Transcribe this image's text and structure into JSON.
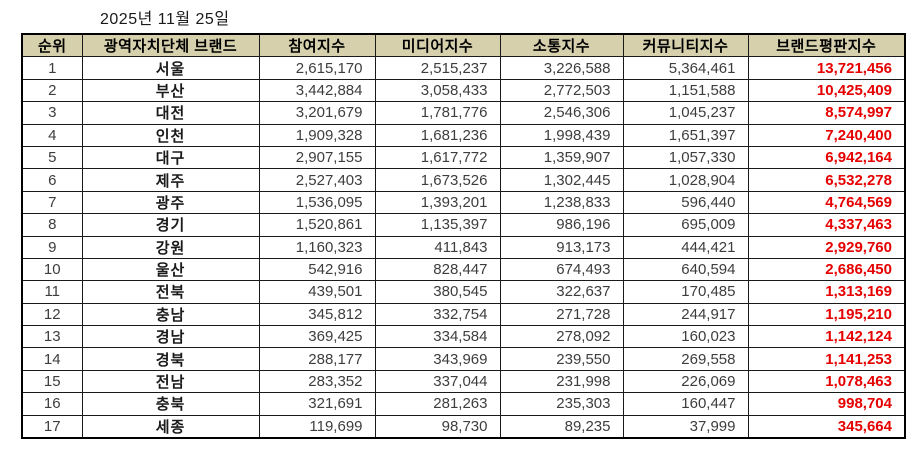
{
  "date_label": "2025년 11월 25일",
  "table": {
    "headers": [
      "순위",
      "광역자치단체 브랜드",
      "참여지수",
      "미디어지수",
      "소통지수",
      "커뮤니티지수",
      "브랜드평판지수"
    ],
    "rows": [
      {
        "rank": "1",
        "brand": "서울",
        "participation": "2,615,170",
        "media": "2,515,237",
        "communication": "3,226,588",
        "community": "5,364,461",
        "reputation": "13,721,456"
      },
      {
        "rank": "2",
        "brand": "부산",
        "participation": "3,442,884",
        "media": "3,058,433",
        "communication": "2,772,503",
        "community": "1,151,588",
        "reputation": "10,425,409"
      },
      {
        "rank": "3",
        "brand": "대전",
        "participation": "3,201,679",
        "media": "1,781,776",
        "communication": "2,546,306",
        "community": "1,045,237",
        "reputation": "8,574,997"
      },
      {
        "rank": "4",
        "brand": "인천",
        "participation": "1,909,328",
        "media": "1,681,236",
        "communication": "1,998,439",
        "community": "1,651,397",
        "reputation": "7,240,400"
      },
      {
        "rank": "5",
        "brand": "대구",
        "participation": "2,907,155",
        "media": "1,617,772",
        "communication": "1,359,907",
        "community": "1,057,330",
        "reputation": "6,942,164"
      },
      {
        "rank": "6",
        "brand": "제주",
        "participation": "2,527,403",
        "media": "1,673,526",
        "communication": "1,302,445",
        "community": "1,028,904",
        "reputation": "6,532,278"
      },
      {
        "rank": "7",
        "brand": "광주",
        "participation": "1,536,095",
        "media": "1,393,201",
        "communication": "1,238,833",
        "community": "596,440",
        "reputation": "4,764,569"
      },
      {
        "rank": "8",
        "brand": "경기",
        "participation": "1,520,861",
        "media": "1,135,397",
        "communication": "986,196",
        "community": "695,009",
        "reputation": "4,337,463"
      },
      {
        "rank": "9",
        "brand": "강원",
        "participation": "1,160,323",
        "media": "411,843",
        "communication": "913,173",
        "community": "444,421",
        "reputation": "2,929,760"
      },
      {
        "rank": "10",
        "brand": "울산",
        "participation": "542,916",
        "media": "828,447",
        "communication": "674,493",
        "community": "640,594",
        "reputation": "2,686,450"
      },
      {
        "rank": "11",
        "brand": "전북",
        "participation": "439,501",
        "media": "380,545",
        "communication": "322,637",
        "community": "170,485",
        "reputation": "1,313,169"
      },
      {
        "rank": "12",
        "brand": "충남",
        "participation": "345,812",
        "media": "332,754",
        "communication": "271,728",
        "community": "244,917",
        "reputation": "1,195,210"
      },
      {
        "rank": "13",
        "brand": "경남",
        "participation": "369,425",
        "media": "334,584",
        "communication": "278,092",
        "community": "160,023",
        "reputation": "1,142,124"
      },
      {
        "rank": "14",
        "brand": "경북",
        "participation": "288,177",
        "media": "343,969",
        "communication": "239,550",
        "community": "269,558",
        "reputation": "1,141,253"
      },
      {
        "rank": "15",
        "brand": "전남",
        "participation": "283,352",
        "media": "337,044",
        "communication": "231,998",
        "community": "226,069",
        "reputation": "1,078,463"
      },
      {
        "rank": "16",
        "brand": "충북",
        "participation": "321,691",
        "media": "281,263",
        "communication": "235,303",
        "community": "160,447",
        "reputation": "998,704"
      },
      {
        "rank": "17",
        "brand": "세종",
        "participation": "119,699",
        "media": "98,730",
        "communication": "89,235",
        "community": "37,999",
        "reputation": "345,664"
      }
    ]
  },
  "chart_data": {
    "type": "table",
    "title": "광역자치단체 브랜드평판 2025년 11월 25일",
    "columns": [
      "순위",
      "광역자치단체 브랜드",
      "참여지수",
      "미디어지수",
      "소통지수",
      "커뮤니티지수",
      "브랜드평판지수"
    ],
    "rows": [
      [
        1,
        "서울",
        2615170,
        2515237,
        3226588,
        5364461,
        13721456
      ],
      [
        2,
        "부산",
        3442884,
        3058433,
        2772503,
        1151588,
        10425409
      ],
      [
        3,
        "대전",
        3201679,
        1781776,
        2546306,
        1045237,
        8574997
      ],
      [
        4,
        "인천",
        1909328,
        1681236,
        1998439,
        1651397,
        7240400
      ],
      [
        5,
        "대구",
        2907155,
        1617772,
        1359907,
        1057330,
        6942164
      ],
      [
        6,
        "제주",
        2527403,
        1673526,
        1302445,
        1028904,
        6532278
      ],
      [
        7,
        "광주",
        1536095,
        1393201,
        1238833,
        596440,
        4764569
      ],
      [
        8,
        "경기",
        1520861,
        1135397,
        986196,
        695009,
        4337463
      ],
      [
        9,
        "강원",
        1160323,
        411843,
        913173,
        444421,
        2929760
      ],
      [
        10,
        "울산",
        542916,
        828447,
        674493,
        640594,
        2686450
      ],
      [
        11,
        "전북",
        439501,
        380545,
        322637,
        170485,
        1313169
      ],
      [
        12,
        "충남",
        345812,
        332754,
        271728,
        244917,
        1195210
      ],
      [
        13,
        "경남",
        369425,
        334584,
        278092,
        160023,
        1142124
      ],
      [
        14,
        "경북",
        288177,
        343969,
        239550,
        269558,
        1141253
      ],
      [
        15,
        "전남",
        283352,
        337044,
        231998,
        226069,
        1078463
      ],
      [
        16,
        "충북",
        321691,
        281263,
        235303,
        160447,
        998704
      ],
      [
        17,
        "세종",
        119699,
        98730,
        89235,
        37999,
        345664
      ]
    ]
  },
  "colors": {
    "header_bg": "#d6d0ac",
    "reputation_text": "#e60000",
    "body_text": "#3d3d3d",
    "border": "#000000"
  }
}
